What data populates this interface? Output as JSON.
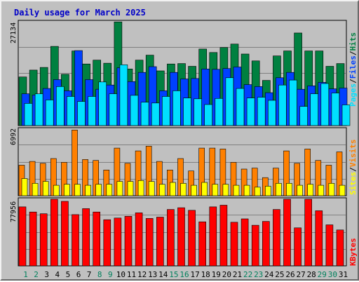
{
  "title": "Daily usage for March 2025",
  "colors": {
    "title": "#0000c8",
    "hits": "#008040",
    "files": "#0040ff",
    "pages": "#00e0ff",
    "visits": "#ff8000",
    "sites": "#ffff00",
    "kbytes": "#ff0000",
    "weekend_label": "#00805c",
    "weekday_label": "#000000",
    "plot_bg": "#c0c0c0",
    "gridline": "#808080"
  },
  "chart_data": [
    {
      "type": "bar",
      "title": "Daily usage for March 2025",
      "categories": [
        "1",
        "2",
        "3",
        "4",
        "5",
        "6",
        "7",
        "8",
        "9",
        "10",
        "11",
        "12",
        "13",
        "14",
        "15",
        "16",
        "17",
        "18",
        "19",
        "20",
        "21",
        "22",
        "23",
        "24",
        "25",
        "26",
        "27",
        "28",
        "29",
        "30",
        "31"
      ],
      "weekend_days": [
        "1",
        "2",
        "8",
        "9",
        "15",
        "16",
        "22",
        "23",
        "29",
        "30"
      ],
      "y_max_label": "27134",
      "ylim": [
        0,
        27134
      ],
      "legend": [
        "Pages",
        "Files",
        "Hits"
      ],
      "legend_placement": "right",
      "series": [
        {
          "name": "Hits",
          "color": "#008040",
          "values": [
            12700,
            14500,
            15200,
            20700,
            13400,
            19500,
            16100,
            17100,
            16300,
            27100,
            14800,
            17100,
            18400,
            14300,
            16100,
            16200,
            15500,
            20000,
            19100,
            20400,
            21300,
            18700,
            16900,
            11800,
            18200,
            19500,
            24200,
            19500,
            19500,
            15500,
            16200
          ]
        },
        {
          "name": "Files",
          "color": "#0040ff",
          "values": [
            8300,
            8000,
            9700,
            12000,
            9100,
            19600,
            12000,
            9500,
            10600,
            15100,
            11500,
            13900,
            15400,
            9100,
            13900,
            12200,
            12300,
            14800,
            14700,
            14900,
            15300,
            10700,
            10200,
            8600,
            12500,
            13900,
            9500,
            10400,
            11300,
            9600,
            9800
          ]
        },
        {
          "name": "Pages",
          "color": "#00e0ff",
          "values": [
            5800,
            8300,
            6700,
            10200,
            7600,
            6300,
            7600,
            11400,
            8300,
            15900,
            7900,
            6100,
            5900,
            7600,
            9100,
            7200,
            7000,
            5500,
            7100,
            12500,
            9700,
            7200,
            7400,
            6600,
            10600,
            11900,
            5000,
            8300,
            11000,
            8500,
            5400
          ]
        }
      ]
    },
    {
      "type": "bar",
      "y_max_label": "6992",
      "ylim": [
        0,
        6992
      ],
      "legend": [
        "Sites",
        "Visits"
      ],
      "legend_placement": "right",
      "series": [
        {
          "name": "Visits",
          "color": "#ff8000",
          "values": [
            3200,
            3600,
            3400,
            3900,
            3500,
            6900,
            3800,
            3700,
            2700,
            5000,
            3400,
            4700,
            5200,
            3600,
            2700,
            3900,
            2600,
            5000,
            5000,
            4900,
            3500,
            2800,
            2900,
            1900,
            2900,
            4700,
            3400,
            4900,
            3700,
            3200,
            4600
          ]
        },
        {
          "name": "Sites",
          "color": "#ffff00",
          "values": [
            1800,
            1300,
            1500,
            1100,
            1200,
            1200,
            1100,
            1200,
            1200,
            1500,
            1500,
            1600,
            1500,
            1200,
            1400,
            1300,
            1100,
            1400,
            1200,
            1200,
            1100,
            1100,
            900,
            1000,
            1300,
            1300,
            1100,
            1200,
            1100,
            1300,
            1100
          ]
        }
      ]
    },
    {
      "type": "bar",
      "y_max_label": "77956",
      "ylim": [
        0,
        77956
      ],
      "legend": [
        "KBytes"
      ],
      "legend_placement": "right",
      "series": [
        {
          "name": "KBytes",
          "color": "#ff0000",
          "values": [
            69000,
            63000,
            61000,
            78000,
            75500,
            60000,
            67000,
            63000,
            54000,
            56000,
            58000,
            62000,
            55500,
            57000,
            66000,
            68000,
            65000,
            51500,
            69000,
            71000,
            51000,
            55000,
            47500,
            52000,
            66000,
            81000,
            44500,
            81000,
            64500,
            48000,
            42000
          ]
        }
      ]
    }
  ]
}
